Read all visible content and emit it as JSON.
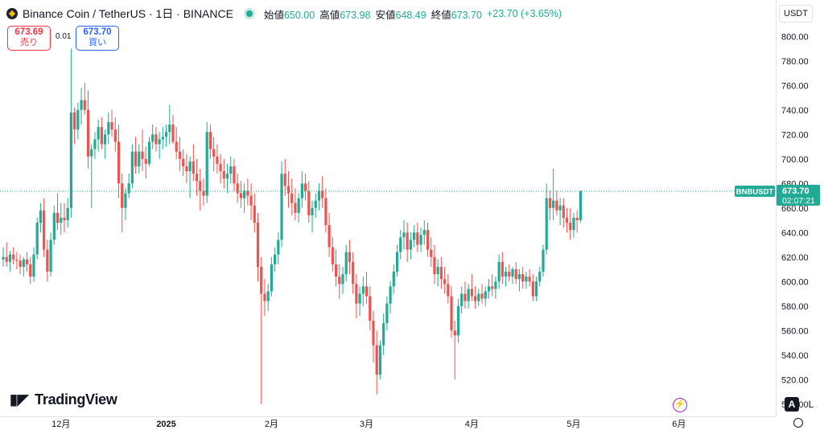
{
  "header": {
    "symbol_title": "Binance Coin / TetherUS · 1日 · BINANCE",
    "ohlc": [
      {
        "label": "始値",
        "value": "650.00"
      },
      {
        "label": "高値",
        "value": "673.98"
      },
      {
        "label": "安値",
        "value": "648.49"
      },
      {
        "label": "終値",
        "value": "673.70"
      }
    ],
    "change": "+23.70 (+3.65%)"
  },
  "trade": {
    "sell_price": "673.69",
    "sell_label": "売り",
    "spread": "0.01",
    "buy_price": "673.70",
    "buy_label": "買い"
  },
  "toolbar": {
    "currency": "USDT",
    "auto_label": "A",
    "log_label": "L"
  },
  "logo": {
    "text": "TradingView"
  },
  "price_tag": {
    "symbol": "BNBUSDT",
    "price": "673.70",
    "countdown": "02:07:21"
  },
  "colors": {
    "up": "#22ab94",
    "down": "#ef5350",
    "accent": "#2962ff"
  },
  "chart_data": {
    "type": "candlestick",
    "interval": "1D",
    "ylim": [
      490,
      810
    ],
    "y_ticks": [
      "500.00",
      "520.00",
      "540.00",
      "560.00",
      "580.00",
      "600.00",
      "620.00",
      "640.00",
      "660.00",
      "680.00",
      "700.00",
      "720.00",
      "740.00",
      "760.00",
      "780.00",
      "800.00"
    ],
    "x_ticks": [
      {
        "label": "12月",
        "day": 17
      },
      {
        "label": "2025",
        "day": 48
      },
      {
        "label": "2月",
        "day": 79
      },
      {
        "label": "3月",
        "day": 107
      },
      {
        "label": "4月",
        "day": 138
      },
      {
        "label": "5月",
        "day": 168
      },
      {
        "label": "6月",
        "day": 199
      }
    ],
    "last_price": 673.7,
    "candles": [
      [
        618,
        628,
        612,
        620
      ],
      [
        620,
        632,
        612,
        616
      ],
      [
        616,
        625,
        608,
        622
      ],
      [
        622,
        628,
        614,
        618
      ],
      [
        618,
        624,
        610,
        617
      ],
      [
        617,
        622,
        606,
        612
      ],
      [
        612,
        620,
        604,
        618
      ],
      [
        618,
        624,
        608,
        614
      ],
      [
        614,
        620,
        598,
        604
      ],
      [
        604,
        628,
        600,
        622
      ],
      [
        622,
        652,
        618,
        648
      ],
      [
        648,
        664,
        640,
        658
      ],
      [
        658,
        668,
        620,
        626
      ],
      [
        626,
        634,
        600,
        608
      ],
      [
        608,
        640,
        604,
        634
      ],
      [
        634,
        662,
        630,
        656
      ],
      [
        656,
        672,
        642,
        648
      ],
      [
        648,
        664,
        638,
        652
      ],
      [
        652,
        664,
        640,
        650
      ],
      [
        650,
        668,
        644,
        660
      ],
      [
        660,
        790,
        652,
        738
      ],
      [
        738,
        742,
        712,
        724
      ],
      [
        724,
        746,
        716,
        740
      ],
      [
        740,
        758,
        728,
        748
      ],
      [
        748,
        762,
        736,
        740
      ],
      [
        740,
        756,
        692,
        702
      ],
      [
        702,
        712,
        660,
        708
      ],
      [
        708,
        722,
        700,
        716
      ],
      [
        716,
        732,
        706,
        726
      ],
      [
        726,
        734,
        708,
        712
      ],
      [
        712,
        724,
        700,
        720
      ],
      [
        720,
        738,
        712,
        730
      ],
      [
        730,
        740,
        718,
        724
      ],
      [
        724,
        734,
        706,
        714
      ],
      [
        714,
        728,
        668,
        680
      ],
      [
        680,
        688,
        640,
        660
      ],
      [
        660,
        676,
        650,
        672
      ],
      [
        672,
        688,
        668,
        680
      ],
      [
        680,
        712,
        676,
        706
      ],
      [
        706,
        718,
        688,
        694
      ],
      [
        694,
        712,
        688,
        706
      ],
      [
        706,
        724,
        690,
        700
      ],
      [
        700,
        710,
        684,
        696
      ],
      [
        696,
        718,
        694,
        714
      ],
      [
        714,
        728,
        708,
        720
      ],
      [
        720,
        726,
        706,
        712
      ],
      [
        712,
        722,
        700,
        716
      ],
      [
        716,
        726,
        708,
        718
      ],
      [
        718,
        728,
        710,
        722
      ],
      [
        722,
        744,
        712,
        728
      ],
      [
        728,
        736,
        712,
        714
      ],
      [
        714,
        726,
        700,
        706
      ],
      [
        706,
        718,
        690,
        700
      ],
      [
        700,
        708,
        686,
        694
      ],
      [
        694,
        704,
        680,
        690
      ],
      [
        690,
        702,
        668,
        698
      ],
      [
        698,
        712,
        682,
        688
      ],
      [
        688,
        700,
        670,
        682
      ],
      [
        682,
        692,
        658,
        674
      ],
      [
        674,
        684,
        662,
        670
      ],
      [
        670,
        730,
        664,
        722
      ],
      [
        722,
        728,
        700,
        708
      ],
      [
        708,
        718,
        690,
        702
      ],
      [
        702,
        712,
        688,
        696
      ],
      [
        696,
        704,
        680,
        690
      ],
      [
        690,
        700,
        676,
        684
      ],
      [
        684,
        696,
        672,
        688
      ],
      [
        688,
        702,
        680,
        694
      ],
      [
        694,
        700,
        674,
        680
      ],
      [
        680,
        688,
        664,
        672
      ],
      [
        672,
        682,
        660,
        668
      ],
      [
        668,
        680,
        656,
        674
      ],
      [
        674,
        684,
        662,
        670
      ],
      [
        670,
        680,
        650,
        662
      ],
      [
        662,
        672,
        640,
        648
      ],
      [
        648,
        656,
        600,
        612
      ],
      [
        612,
        620,
        500,
        590
      ],
      [
        590,
        602,
        572,
        584
      ],
      [
        584,
        598,
        576,
        592
      ],
      [
        592,
        620,
        588,
        614
      ],
      [
        614,
        628,
        608,
        622
      ],
      [
        622,
        640,
        614,
        634
      ],
      [
        634,
        698,
        628,
        688
      ],
      [
        688,
        700,
        670,
        678
      ],
      [
        678,
        690,
        660,
        672
      ],
      [
        672,
        684,
        654,
        664
      ],
      [
        664,
        676,
        650,
        656
      ],
      [
        656,
        672,
        648,
        668
      ],
      [
        668,
        690,
        660,
        680
      ],
      [
        680,
        688,
        666,
        674
      ],
      [
        674,
        682,
        648,
        654
      ],
      [
        654,
        666,
        640,
        660
      ],
      [
        660,
        672,
        652,
        666
      ],
      [
        666,
        680,
        658,
        674
      ],
      [
        674,
        686,
        660,
        668
      ],
      [
        668,
        676,
        640,
        646
      ],
      [
        646,
        656,
        620,
        628
      ],
      [
        628,
        636,
        608,
        614
      ],
      [
        614,
        626,
        596,
        604
      ],
      [
        604,
        614,
        586,
        598
      ],
      [
        598,
        612,
        590,
        606
      ],
      [
        606,
        630,
        600,
        624
      ],
      [
        624,
        634,
        606,
        616
      ],
      [
        616,
        624,
        590,
        598
      ],
      [
        598,
        606,
        570,
        582
      ],
      [
        582,
        596,
        572,
        590
      ],
      [
        590,
        604,
        580,
        596
      ],
      [
        596,
        608,
        582,
        588
      ],
      [
        588,
        596,
        560,
        568
      ],
      [
        568,
        576,
        534,
        548
      ],
      [
        548,
        560,
        508,
        524
      ],
      [
        524,
        552,
        520,
        548
      ],
      [
        548,
        574,
        540,
        566
      ],
      [
        566,
        588,
        560,
        582
      ],
      [
        582,
        600,
        574,
        596
      ],
      [
        596,
        614,
        590,
        608
      ],
      [
        608,
        630,
        604,
        624
      ],
      [
        624,
        642,
        618,
        636
      ],
      [
        636,
        650,
        626,
        640
      ],
      [
        640,
        648,
        616,
        626
      ],
      [
        626,
        640,
        618,
        634
      ],
      [
        634,
        646,
        628,
        640
      ],
      [
        640,
        648,
        624,
        630
      ],
      [
        630,
        644,
        624,
        638
      ],
      [
        638,
        650,
        630,
        642
      ],
      [
        642,
        648,
        620,
        626
      ],
      [
        626,
        636,
        612,
        620
      ],
      [
        620,
        630,
        598,
        606
      ],
      [
        606,
        618,
        596,
        612
      ],
      [
        612,
        620,
        594,
        602
      ],
      [
        602,
        612,
        590,
        598
      ],
      [
        598,
        606,
        582,
        588
      ],
      [
        588,
        596,
        554,
        560
      ],
      [
        560,
        568,
        520,
        556
      ],
      [
        556,
        586,
        550,
        580
      ],
      [
        580,
        596,
        574,
        590
      ],
      [
        590,
        600,
        578,
        584
      ],
      [
        584,
        598,
        578,
        594
      ],
      [
        594,
        606,
        584,
        588
      ],
      [
        588,
        596,
        578,
        584
      ],
      [
        584,
        594,
        580,
        590
      ],
      [
        590,
        598,
        582,
        586
      ],
      [
        586,
        596,
        580,
        592
      ],
      [
        592,
        602,
        586,
        596
      ],
      [
        596,
        606,
        588,
        594
      ],
      [
        594,
        604,
        586,
        600
      ],
      [
        600,
        622,
        594,
        616
      ],
      [
        616,
        624,
        598,
        604
      ],
      [
        604,
        612,
        596,
        608
      ],
      [
        608,
        614,
        600,
        604
      ],
      [
        604,
        612,
        598,
        610
      ],
      [
        610,
        616,
        598,
        602
      ],
      [
        602,
        610,
        592,
        606
      ],
      [
        606,
        612,
        594,
        600
      ],
      [
        600,
        608,
        594,
        604
      ],
      [
        604,
        610,
        596,
        600
      ],
      [
        600,
        606,
        584,
        588
      ],
      [
        588,
        604,
        584,
        600
      ],
      [
        600,
        612,
        596,
        608
      ],
      [
        608,
        630,
        604,
        626
      ],
      [
        626,
        680,
        622,
        668
      ],
      [
        668,
        674,
        650,
        660
      ],
      [
        660,
        692,
        650,
        666
      ],
      [
        666,
        674,
        654,
        658
      ],
      [
        658,
        668,
        646,
        662
      ],
      [
        662,
        668,
        644,
        652
      ],
      [
        652,
        660,
        640,
        648
      ],
      [
        648,
        660,
        634,
        642
      ],
      [
        642,
        656,
        636,
        652
      ],
      [
        652,
        658,
        640,
        650
      ],
      [
        650,
        674,
        648,
        674
      ]
    ]
  }
}
